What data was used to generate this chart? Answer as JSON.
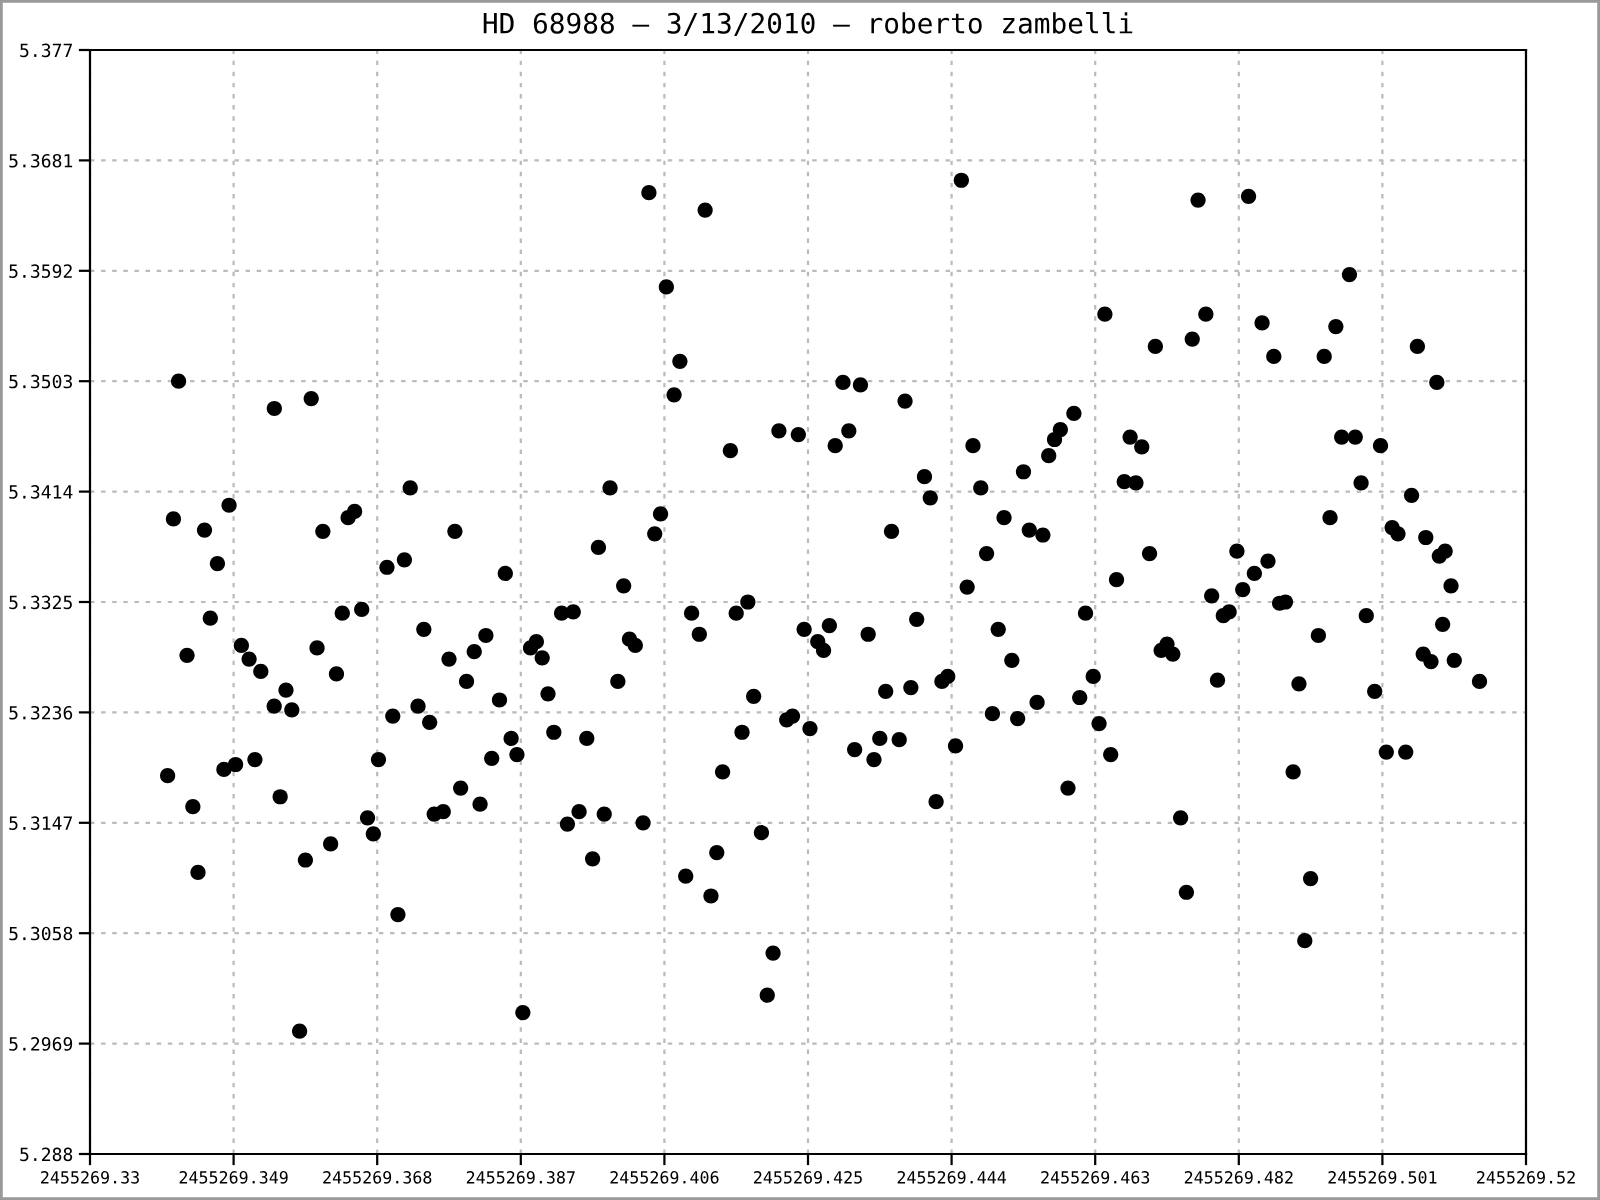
{
  "chart_data": {
    "type": "scatter",
    "title": "HD 68988 – 3/13/2010 – roberto zambelli",
    "xlim": [
      2455269.33,
      2455269.52
    ],
    "xticks": [
      2455269.33,
      2455269.349,
      2455269.368,
      2455269.387,
      2455269.406,
      2455269.425,
      2455269.444,
      2455269.463,
      2455269.482,
      2455269.501,
      2455269.52
    ],
    "ylim": [
      5.288,
      5.377
    ],
    "yticks": [
      5.288,
      5.2969,
      5.3058,
      5.3147,
      5.3236,
      5.3325,
      5.3414,
      5.3503,
      5.3592,
      5.3681,
      5.377
    ],
    "grid": true,
    "marker": "circle",
    "series": [
      {
        "color": "#000000",
        "x": [
          2455269.34172,
          2455269.34104,
          2455269.34515,
          2455269.3484,
          2455269.34686,
          2455269.34592,
          2455269.34284,
          2455269.34027,
          2455269.34361,
          2455269.34429,
          2455269.35439,
          2455269.35927,
          2455269.35003,
          2455269.35105,
          2455269.3526,
          2455269.35593,
          2455269.35437,
          2455269.3567,
          2455269.34772,
          2455269.34926,
          2455269.35182,
          2455269.35516,
          2455269.3585,
          2455269.36184,
          2455269.35773,
          2455269.36081,
          2455269.36415,
          2455269.36501,
          2455269.36338,
          2455269.36595,
          2455269.36004,
          2455269.36261,
          2455269.36672,
          2455269.36749,
          2455269.36817,
          2455269.37074,
          2455269.37237,
          2455269.36929,
          2455269.3716,
          2455269.37828,
          2455269.37417,
          2455269.37006,
          2455269.3734,
          2455269.37494,
          2455269.3775,
          2455269.37982,
          2455269.38084,
          2455269.38238,
          2455269.38418,
          2455269.37904,
          2455269.38161,
          2455269.37554,
          2455269.37674,
          2455269.38315,
          2455269.38572,
          2455269.38649,
          2455269.38495,
          2455269.38727,
          2455269.38829,
          2455269.38906,
          2455269.38983,
          2455269.3906,
          2455269.39137,
          2455269.3924,
          2455269.39394,
          2455269.39317,
          2455269.39471,
          2455269.39573,
          2455269.39881,
          2455269.39727,
          2455269.40061,
          2455269.40138,
          2455269.40215,
          2455269.39984,
          2455269.3965,
          2455269.39804,
          2455269.40318,
          2455269.40395,
          2455269.41139,
          2455269.40626,
          2455269.40805,
          2455269.40728,
          2455269.40549,
          2455269.40472,
          2455269.41473,
          2455269.4096,
          2455269.41062,
          2455269.4155,
          2455269.41704,
          2455269.41781,
          2455269.41627,
          2455269.4137,
          2455269.41884,
          2455269.41293,
          2455269.40882,
          2455269.41216,
          2455269.42038,
          2455269.41961,
          2455269.42115,
          2455269.42372,
          2455269.42963,
          2455269.43194,
          2455269.4286,
          2455269.4304,
          2455269.43784,
          2455269.44041,
          2455269.44118,
          2455269.43605,
          2455269.43938,
          2455269.42449,
          2455269.42783,
          2455269.42629,
          2455269.42706,
          2455269.43296,
          2455269.42218,
          2455269.42295,
          2455269.42526,
          2455269.43528,
          2455269.43861,
          2455269.43117,
          2455269.4345,
          2455269.43373,
          2455269.43707,
          2455269.44195,
          2455269.44272,
          2455269.44349,
          2455269.44452,
          2455269.44529,
          2455269.44683,
          2455269.44786,
          2455269.44606,
          2455269.44863,
          2455269.45094,
          2455269.45351,
          2455269.45428,
          2455269.45608,
          2455269.45685,
          2455269.45762,
          2455269.45839,
          2455269.45017,
          2455269.45197,
          2455269.4494,
          2455269.45274,
          2455269.45531,
          2455269.46018,
          2455269.4594,
          2455269.46762,
          2455269.46916,
          2455269.46685,
          2455269.46839,
          2455269.46428,
          2455269.47096,
          2455269.47584,
          2455269.47764,
          2455269.47661,
          2455269.48329,
          2455269.48508,
          2455269.48663,
          2455269.4933,
          2455269.49484,
          2455269.49664,
          2455269.50563,
          2455269.5082,
          2455269.49561,
          2455269.49741,
          2455269.50075,
          2455269.49818,
          2455269.50486,
          2455269.49407,
          2455269.50229,
          2455269.50306,
          2455269.50674,
          2455269.50853,
          2455269.5093,
          2455269.51008,
          2455269.47019,
          2455269.46582,
          2455269.48175,
          2455269.48406,
          2455269.48586,
          2455269.48252,
          2455269.47841,
          2455269.47995,
          2455269.48072,
          2455269.4874,
          2455269.48817,
          2455269.46172,
          2455269.49887,
          2455269.50897,
          2455269.49253,
          2455269.47173,
          2455269.4725,
          2455269.47327,
          2455269.5064,
          2455269.50743,
          2455269.51051,
          2455269.51385,
          2455269.46274,
          2455269.46095,
          2455269.47918,
          2455269.48996,
          2455269.49998,
          2455269.46351,
          2455269.46505,
          2455269.50152,
          2455269.50409,
          2455269.48919,
          2455269.4743,
          2455269.47507,
          2455269.4915,
          2455269.49073
        ],
        "values": [
          5.3503,
          5.3392,
          5.3383,
          5.3403,
          5.3356,
          5.3312,
          5.3282,
          5.3185,
          5.316,
          5.3107,
          5.3481,
          5.3489,
          5.329,
          5.3279,
          5.3269,
          5.3254,
          5.3241,
          5.3238,
          5.319,
          5.3194,
          5.3198,
          5.3168,
          5.3117,
          5.313,
          5.2979,
          5.3382,
          5.3393,
          5.3398,
          5.3316,
          5.3319,
          5.3288,
          5.3267,
          5.3151,
          5.3138,
          5.3198,
          5.3073,
          5.3417,
          5.3353,
          5.3359,
          5.3382,
          5.3303,
          5.3233,
          5.3241,
          5.3228,
          5.3279,
          5.3261,
          5.3285,
          5.3298,
          5.3246,
          5.3175,
          5.3162,
          5.3154,
          5.3156,
          5.3199,
          5.3215,
          5.3202,
          5.3348,
          5.2994,
          5.3288,
          5.3293,
          5.328,
          5.3251,
          5.322,
          5.3316,
          5.3317,
          5.3146,
          5.3156,
          5.3215,
          5.3417,
          5.3369,
          5.3338,
          5.3295,
          5.329,
          5.3261,
          5.3118,
          5.3154,
          5.3147,
          5.3655,
          5.3641,
          5.3579,
          5.3519,
          5.3492,
          5.3396,
          5.338,
          5.3447,
          5.3316,
          5.3299,
          5.3316,
          5.3325,
          5.3249,
          5.322,
          5.3188,
          5.3139,
          5.3123,
          5.3104,
          5.3088,
          5.3042,
          5.3008,
          5.3463,
          5.346,
          5.3502,
          5.35,
          5.3451,
          5.3463,
          5.3487,
          5.3426,
          5.3409,
          5.3382,
          5.3311,
          5.3303,
          5.3306,
          5.3293,
          5.3286,
          5.3299,
          5.323,
          5.3233,
          5.3223,
          5.3253,
          5.3256,
          5.3206,
          5.3215,
          5.3198,
          5.3214,
          5.3164,
          5.3261,
          5.3265,
          5.3209,
          5.3665,
          5.3451,
          5.3417,
          5.3337,
          5.3364,
          5.3393,
          5.343,
          5.3383,
          5.3379,
          5.3443,
          5.3456,
          5.3464,
          5.3303,
          5.3278,
          5.3235,
          5.3231,
          5.3244,
          5.3477,
          5.3175,
          5.3458,
          5.345,
          5.3422,
          5.3421,
          5.3557,
          5.3531,
          5.3537,
          5.3557,
          5.3649,
          5.3652,
          5.355,
          5.3523,
          5.3523,
          5.3547,
          5.3589,
          5.3531,
          5.3502,
          5.3458,
          5.3458,
          5.3451,
          5.3421,
          5.3411,
          5.3393,
          5.3385,
          5.338,
          5.3377,
          5.3362,
          5.3366,
          5.3338,
          5.3364,
          5.3343,
          5.3366,
          5.3348,
          5.3358,
          5.3335,
          5.333,
          5.3314,
          5.3317,
          5.3324,
          5.3325,
          5.3316,
          5.3314,
          5.3307,
          5.3298,
          5.3286,
          5.3291,
          5.3283,
          5.3283,
          5.3277,
          5.3278,
          5.3261,
          5.3265,
          5.3248,
          5.3262,
          5.3259,
          5.3253,
          5.3227,
          5.3202,
          5.3204,
          5.3204,
          5.3188,
          5.3151,
          5.3091,
          5.3102,
          5.3052
        ]
      }
    ]
  }
}
